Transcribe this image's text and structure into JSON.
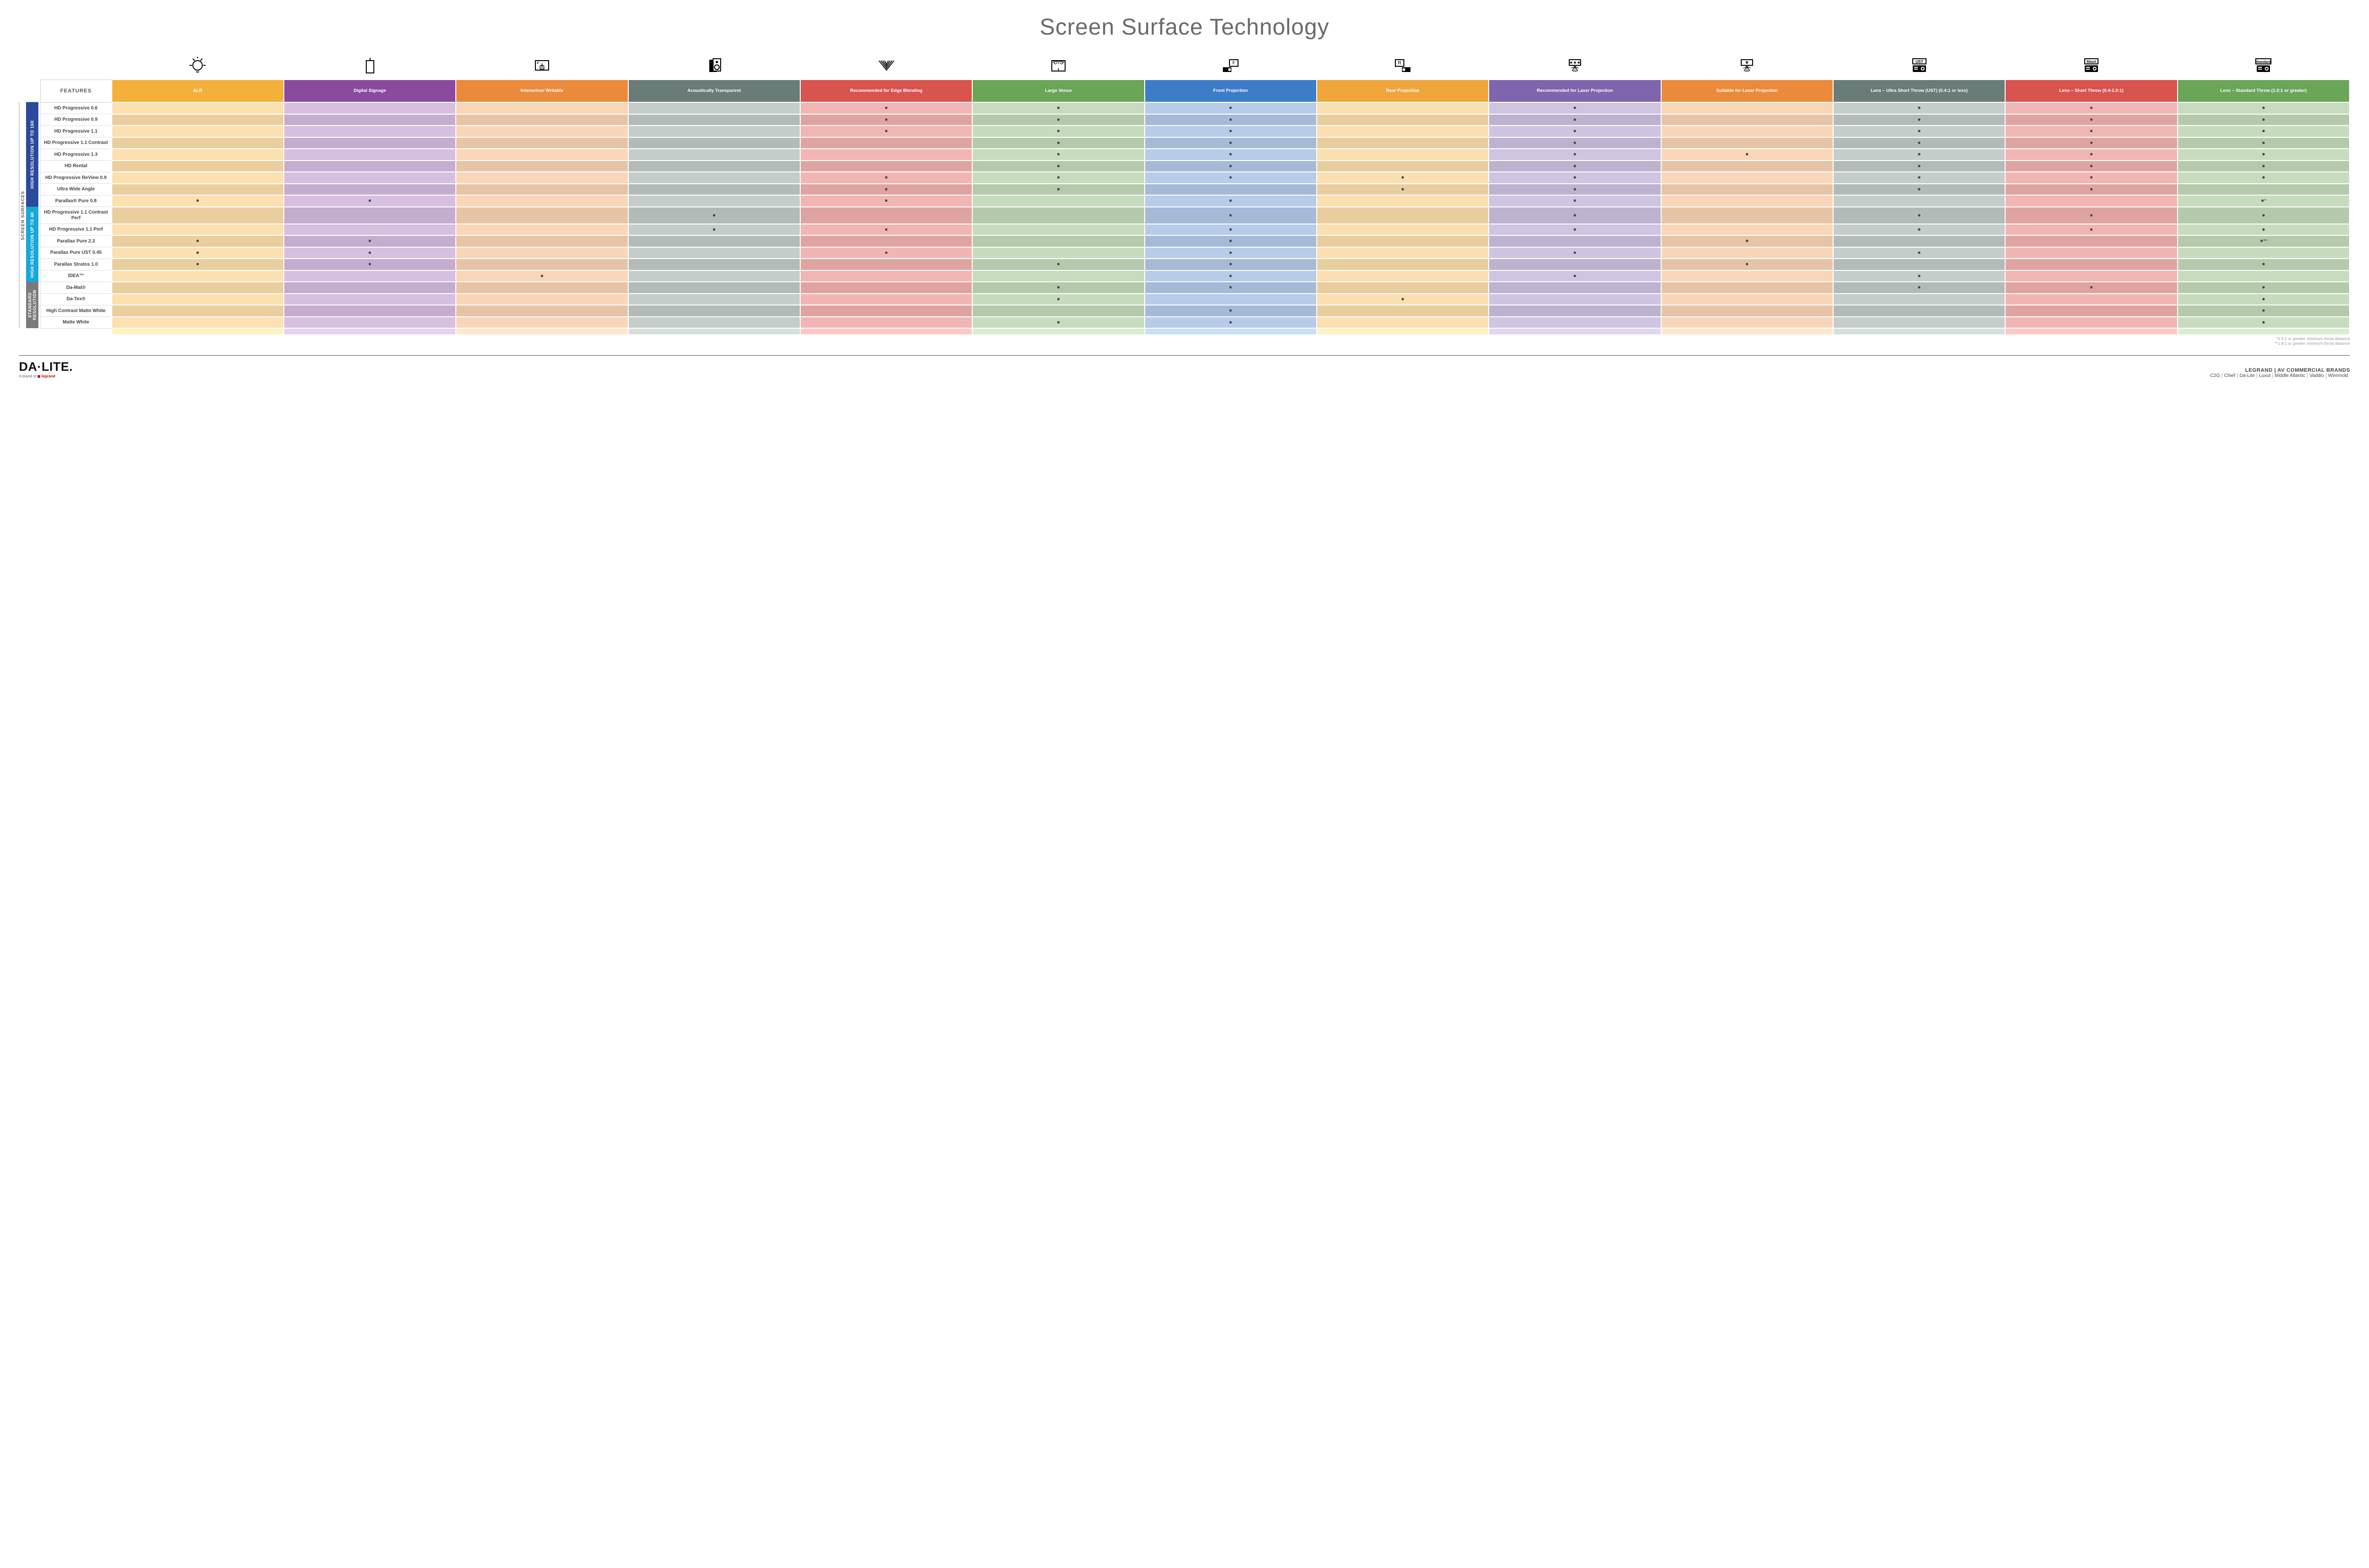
{
  "title": "Screen Surface Technology",
  "features_label": "FEATURES",
  "side_label": "SCREEN SURFACES",
  "columns": [
    {
      "key": "alr",
      "label": "ALR",
      "color": "#f3b03a",
      "tint": "#fce0b0",
      "icon": "bulb"
    },
    {
      "key": "signage",
      "label": "Digital Signage",
      "color": "#8a4a9e",
      "tint": "#d6bfe0",
      "icon": "signage"
    },
    {
      "key": "interactive",
      "label": "Interactive/ Writable",
      "color": "#ec8a3b",
      "tint": "#f9d6b8",
      "icon": "touch"
    },
    {
      "key": "acoustic",
      "label": "Acoustically Transparent",
      "color": "#6a7c78",
      "tint": "#c4cdca",
      "icon": "speaker"
    },
    {
      "key": "edge",
      "label": "Recommended for Edge Blending",
      "color": "#d9534f",
      "tint": "#f1b6b4",
      "icon": "blend"
    },
    {
      "key": "large",
      "label": "Large Venue",
      "color": "#6aa558",
      "tint": "#c7dcbe",
      "icon": "venue"
    },
    {
      "key": "front",
      "label": "Front Projection",
      "color": "#3d7cc9",
      "tint": "#b6cce8",
      "icon": "front"
    },
    {
      "key": "rear",
      "label": "Rear Projection",
      "color": "#f0a63a",
      "tint": "#fadfb0",
      "icon": "rear"
    },
    {
      "key": "reclaser",
      "label": "Recommended for Laser Projection",
      "color": "#7e65ad",
      "tint": "#cfc4e1",
      "icon": "laser3"
    },
    {
      "key": "suitlaser",
      "label": "Suitable for Laser Projection",
      "color": "#ec8a3b",
      "tint": "#f9d6b8",
      "icon": "laser1"
    },
    {
      "key": "ust",
      "label": "Lens – Ultra Short Throw (UST) (0.4:1 or less)",
      "color": "#6a7c78",
      "tint": "#c4cdca",
      "icon": "proj-ust"
    },
    {
      "key": "short",
      "label": "Lens – Short Throw (0.4-1.0:1)",
      "color": "#d9534f",
      "tint": "#f1b6b4",
      "icon": "proj-short"
    },
    {
      "key": "std",
      "label": "Lens – Standard Throw (1.0:1 or greater)",
      "color": "#6aa558",
      "tint": "#c7dcbe",
      "icon": "proj-std"
    }
  ],
  "groups": [
    {
      "key": "g16k",
      "label": "HIGH RESOLUTION UP TO 16K",
      "color": "#2b4a9b",
      "rows": [
        {
          "label": "HD Progressive 0.6",
          "dots": {
            "edge": "•",
            "large": "•",
            "front": "•",
            "reclaser": "•",
            "ust": "•",
            "short": "•",
            "std": "•"
          }
        },
        {
          "label": "HD Progressive 0.9",
          "dots": {
            "edge": "•",
            "large": "•",
            "front": "•",
            "reclaser": "•",
            "ust": "•",
            "short": "•",
            "std": "•"
          }
        },
        {
          "label": "HD Progressive 1.1",
          "dots": {
            "edge": "•",
            "large": "•",
            "front": "•",
            "reclaser": "•",
            "ust": "•",
            "short": "•",
            "std": "•"
          }
        },
        {
          "label": "HD Progressive 1.1 Contrast",
          "dots": {
            "large": "•",
            "front": "•",
            "reclaser": "•",
            "ust": "•",
            "short": "•",
            "std": "•"
          }
        },
        {
          "label": "HD Progressive 1.3",
          "dots": {
            "large": "•",
            "front": "•",
            "reclaser": "•",
            "suitlaser": "•",
            "ust": "•",
            "short": "•",
            "std": "•"
          }
        },
        {
          "label": "HD Rental",
          "dots": {
            "large": "•",
            "front": "•",
            "reclaser": "•",
            "ust": "•",
            "short": "•",
            "std": "•"
          }
        },
        {
          "label": "HD Progressive ReView 0.9",
          "dots": {
            "edge": "•",
            "large": "•",
            "front": "•",
            "rear": "•",
            "reclaser": "•",
            "ust": "•",
            "short": "•",
            "std": "•"
          }
        },
        {
          "label": "Ultra Wide Angle",
          "dots": {
            "edge": "•",
            "large": "•",
            "rear": "•",
            "reclaser": "•",
            "ust": "•",
            "short": "•"
          }
        },
        {
          "label": "Parallax® Pure 0.8",
          "dots": {
            "alr": "•",
            "signage": "•",
            "edge": "•",
            "front": "•",
            "reclaser": "•",
            "std": "•*"
          }
        }
      ]
    },
    {
      "key": "g4k",
      "label": "HIGH RESOLUTION UP TO 4K",
      "color": "#17a7d8",
      "rows": [
        {
          "label": "HD Progressive 1.1 Contrast Perf",
          "dots": {
            "acoustic": "•",
            "front": "•",
            "reclaser": "•",
            "ust": "•",
            "short": "•",
            "std": "•"
          }
        },
        {
          "label": "HD Progressive 1.1 Perf",
          "dots": {
            "acoustic": "•",
            "edge": "•",
            "front": "•",
            "reclaser": "•",
            "ust": "•",
            "short": "•",
            "std": "•"
          }
        },
        {
          "label": "Parallax Pure 2.3",
          "dots": {
            "alr": "•",
            "signage": "•",
            "front": "•",
            "suitlaser": "•",
            "std": "•**"
          }
        },
        {
          "label": "Parallax Pure UST 0.45",
          "dots": {
            "alr": "•",
            "signage": "•",
            "edge": "•",
            "front": "•",
            "reclaser": "•",
            "ust": "•"
          }
        },
        {
          "label": "Parallax Stratos 1.0",
          "dots": {
            "alr": "•",
            "signage": "•",
            "large": "•",
            "front": "•",
            "suitlaser": "•",
            "std": "•"
          }
        },
        {
          "label": "IDEA™",
          "dots": {
            "interactive": "•",
            "front": "•",
            "reclaser": "•",
            "ust": "•"
          }
        }
      ]
    },
    {
      "key": "gstd",
      "label": "STANDARD RESOLUTION",
      "color": "#7a7a7a",
      "rows": [
        {
          "label": "Da-Mat®",
          "dots": {
            "large": "•",
            "front": "•",
            "ust": "•",
            "short": "•",
            "std": "•"
          }
        },
        {
          "label": "Da-Tex®",
          "dots": {
            "large": "•",
            "rear": "•",
            "std": "•"
          }
        },
        {
          "label": "High Contrast Matte White",
          "dots": {
            "front": "•",
            "std": "•"
          }
        },
        {
          "label": "Matte White",
          "dots": {
            "large": "•",
            "front": "•",
            "std": "•"
          }
        }
      ]
    }
  ],
  "footnotes": [
    "*1.5:1 or greater minimum throw distance",
    "**1.8:1 or greater minimum throw distance"
  ],
  "brand": {
    "name": "DA·LITE.",
    "sub_prefix": "A brand of ",
    "sub_brand": "legrand"
  },
  "footer": {
    "title": "LEGRAND | AV COMMERCIAL BRANDS",
    "brands": [
      "C2G",
      "Chief",
      "Da-Lite",
      "Luxul",
      "Middle Atlantic",
      "Vaddio",
      "Wiremold"
    ]
  }
}
